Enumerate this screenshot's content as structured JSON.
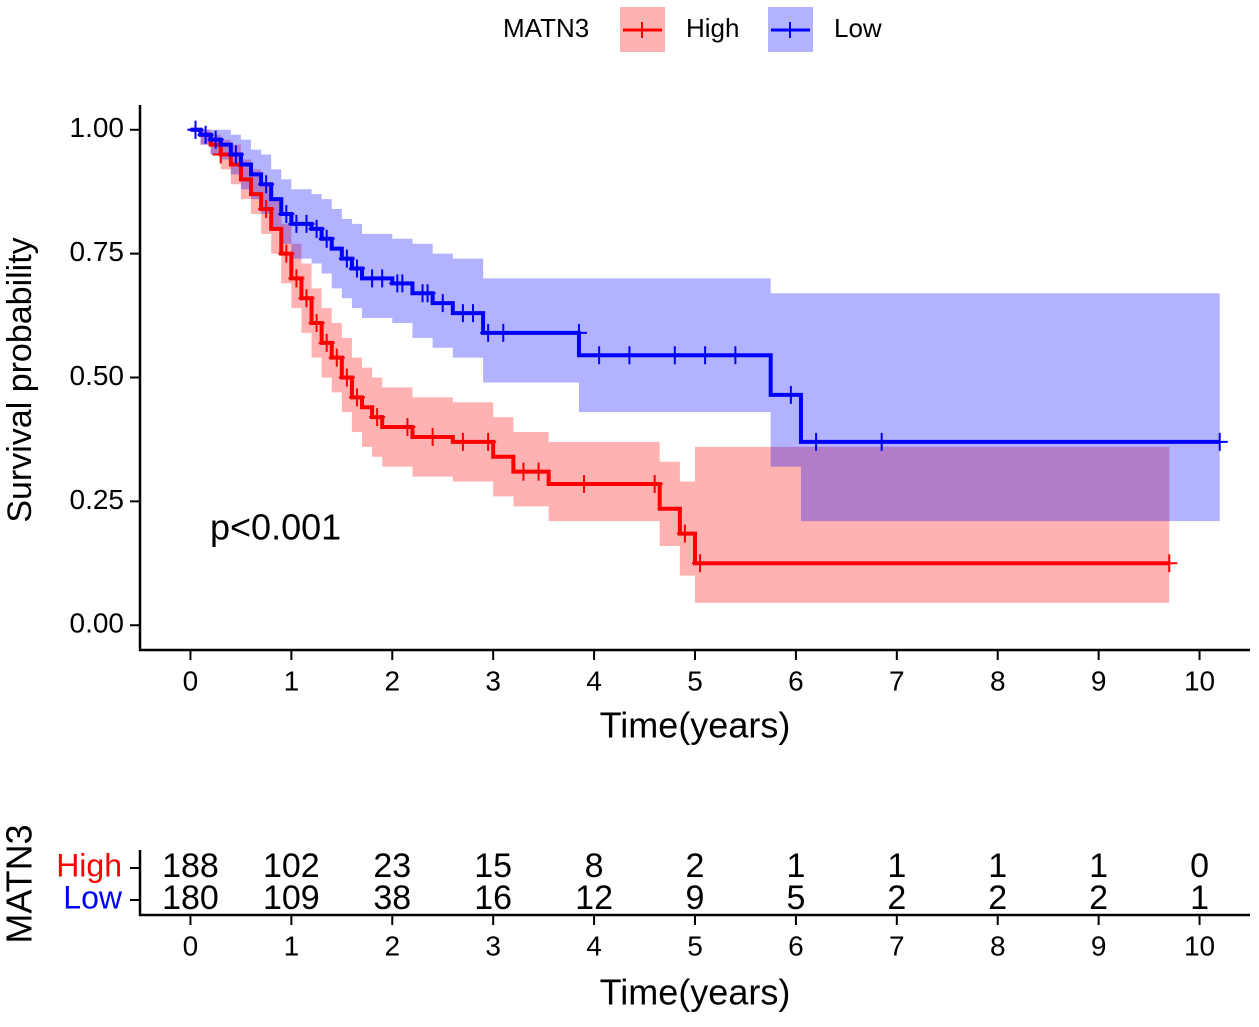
{
  "chart_data": [
    {
      "type": "survival",
      "legend_title": "MATN3",
      "xlabel": "Time(years)",
      "ylabel": "Survival probability",
      "annotation": "p<0.001",
      "xlim": [
        -0.5,
        10.5
      ],
      "ylim": [
        -0.05,
        1.05
      ],
      "xticks": [
        0,
        1,
        2,
        3,
        4,
        5,
        6,
        7,
        8,
        9,
        10
      ],
      "yticks": [
        {
          "value": 0,
          "label": "0.00"
        },
        {
          "value": 0.25,
          "label": "0.25"
        },
        {
          "value": 0.5,
          "label": "0.50"
        },
        {
          "value": 0.75,
          "label": "0.75"
        },
        {
          "value": 1,
          "label": "1.00"
        }
      ],
      "legend": "top",
      "series": [
        {
          "name": "High",
          "color": "#ff0000",
          "x": [
            0,
            0.1,
            0.2,
            0.3,
            0.4,
            0.5,
            0.6,
            0.7,
            0.8,
            0.9,
            1.0,
            1.1,
            1.2,
            1.3,
            1.4,
            1.5,
            1.6,
            1.7,
            1.8,
            1.9,
            2.2,
            2.6,
            3.0,
            3.2,
            3.55,
            4.65,
            4.85,
            5.0,
            9.7
          ],
          "values": [
            1.0,
            0.99,
            0.97,
            0.95,
            0.93,
            0.9,
            0.87,
            0.84,
            0.8,
            0.75,
            0.7,
            0.66,
            0.61,
            0.57,
            0.54,
            0.5,
            0.46,
            0.44,
            0.42,
            0.4,
            0.38,
            0.37,
            0.34,
            0.31,
            0.285,
            0.235,
            0.185,
            0.125,
            0.125
          ],
          "upper": [
            1,
            1,
            0.99,
            0.98,
            0.97,
            0.94,
            0.92,
            0.89,
            0.86,
            0.81,
            0.77,
            0.73,
            0.68,
            0.64,
            0.61,
            0.58,
            0.54,
            0.52,
            0.5,
            0.48,
            0.46,
            0.45,
            0.42,
            0.39,
            0.37,
            0.33,
            0.29,
            0.36,
            0.36
          ],
          "lower": [
            1,
            0.97,
            0.95,
            0.92,
            0.89,
            0.86,
            0.83,
            0.79,
            0.75,
            0.69,
            0.64,
            0.59,
            0.54,
            0.5,
            0.47,
            0.43,
            0.39,
            0.36,
            0.34,
            0.32,
            0.3,
            0.29,
            0.26,
            0.24,
            0.21,
            0.16,
            0.1,
            0.045,
            0.045
          ],
          "censor_x": [
            0.05,
            0.3,
            0.75,
            0.95,
            1.05,
            1.15,
            1.25,
            1.35,
            1.45,
            1.55,
            1.65,
            1.85,
            2.15,
            2.4,
            2.7,
            2.95,
            3.3,
            3.45,
            3.9,
            4.6,
            4.9,
            5.05,
            9.7
          ],
          "censor_y": [
            1.0,
            0.95,
            0.84,
            0.75,
            0.7,
            0.66,
            0.61,
            0.57,
            0.54,
            0.5,
            0.46,
            0.42,
            0.4,
            0.38,
            0.37,
            0.37,
            0.31,
            0.31,
            0.285,
            0.285,
            0.185,
            0.125,
            0.125
          ]
        },
        {
          "name": "Low",
          "color": "#0000ff",
          "x": [
            0,
            0.1,
            0.2,
            0.3,
            0.4,
            0.5,
            0.6,
            0.7,
            0.8,
            0.9,
            1.0,
            1.2,
            1.3,
            1.4,
            1.5,
            1.6,
            1.7,
            2.0,
            2.2,
            2.4,
            2.6,
            2.9,
            3.85,
            5.75,
            6.05,
            10.2
          ],
          "values": [
            1.0,
            0.99,
            0.98,
            0.97,
            0.95,
            0.93,
            0.91,
            0.89,
            0.86,
            0.83,
            0.81,
            0.8,
            0.78,
            0.76,
            0.74,
            0.72,
            0.7,
            0.69,
            0.67,
            0.65,
            0.63,
            0.59,
            0.545,
            0.465,
            0.37,
            0.37
          ],
          "upper": [
            1,
            1,
            1,
            1,
            0.99,
            0.98,
            0.96,
            0.95,
            0.92,
            0.9,
            0.88,
            0.87,
            0.86,
            0.84,
            0.82,
            0.81,
            0.79,
            0.78,
            0.77,
            0.75,
            0.74,
            0.7,
            0.7,
            0.67,
            0.67,
            0.67
          ],
          "lower": [
            1,
            0.97,
            0.95,
            0.94,
            0.91,
            0.88,
            0.86,
            0.83,
            0.8,
            0.77,
            0.74,
            0.73,
            0.71,
            0.68,
            0.66,
            0.64,
            0.62,
            0.61,
            0.58,
            0.56,
            0.54,
            0.49,
            0.43,
            0.32,
            0.21,
            0.21
          ],
          "censor_x": [
            0.05,
            0.15,
            0.25,
            0.45,
            0.75,
            0.95,
            1.05,
            1.15,
            1.25,
            1.35,
            1.55,
            1.65,
            1.8,
            1.9,
            2.05,
            2.1,
            2.3,
            2.35,
            2.5,
            2.7,
            2.8,
            2.95,
            3.1,
            3.85,
            4.05,
            4.35,
            4.8,
            5.1,
            5.4,
            5.95,
            6.2,
            6.85,
            10.2
          ],
          "censor_y": [
            1.0,
            0.99,
            0.98,
            0.95,
            0.89,
            0.83,
            0.81,
            0.81,
            0.8,
            0.78,
            0.74,
            0.72,
            0.7,
            0.7,
            0.69,
            0.69,
            0.67,
            0.67,
            0.65,
            0.63,
            0.63,
            0.59,
            0.59,
            0.59,
            0.545,
            0.545,
            0.545,
            0.545,
            0.545,
            0.465,
            0.37,
            0.37,
            0.37
          ]
        }
      ]
    },
    {
      "type": "risk_table",
      "ylabel": "MATN3",
      "xlabel": "Time(years)",
      "xlim": [
        -0.5,
        10.5
      ],
      "xticks": [
        0,
        1,
        2,
        3,
        4,
        5,
        6,
        7,
        8,
        9,
        10
      ],
      "rows": [
        {
          "name": "High",
          "color": "#ff0000",
          "values": [
            188,
            102,
            23,
            15,
            8,
            2,
            1,
            1,
            1,
            1,
            0
          ]
        },
        {
          "name": "Low",
          "color": "#0000ff",
          "values": [
            180,
            109,
            38,
            16,
            12,
            9,
            5,
            2,
            2,
            2,
            1
          ]
        }
      ]
    }
  ]
}
